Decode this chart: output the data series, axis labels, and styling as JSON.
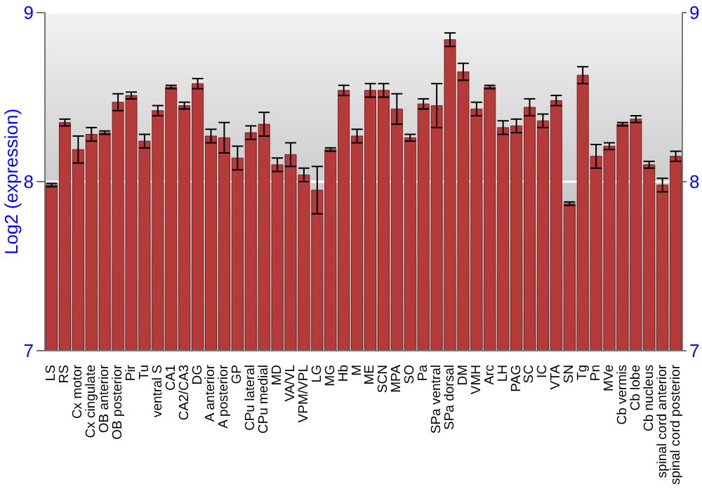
{
  "chart_data": {
    "type": "bar",
    "ylabel": "Log2 (expression)",
    "categories": [
      "LS",
      "RS",
      "Cx motor",
      "Cx cingulate",
      "OB anterior",
      "OB posterior",
      "Pir",
      "Tu",
      "ventral S",
      "CA1",
      "CA2/CA3",
      "DG",
      "A anterior",
      "A posterior",
      "GP",
      "CPu lateral",
      "CPu medial",
      "MD",
      "VA/VL",
      "VPM/VPL",
      "LG",
      "MG",
      "Hb",
      "M",
      "ME",
      "SCN",
      "MPA",
      "SO",
      "Pa",
      "SPa ventral",
      "SPa dorsal",
      "DM",
      "VMH",
      "Arc",
      "LH",
      "PAG",
      "SC",
      "IC",
      "VTA",
      "SN",
      "Tg",
      "Pn",
      "MVe",
      "Cb vermis",
      "Cb lobe",
      "Cb nucleus",
      "spinal cord anterior",
      "spinal cord posterior"
    ],
    "values": [
      7.98,
      8.35,
      8.19,
      8.28,
      8.29,
      8.47,
      8.51,
      8.24,
      8.42,
      8.56,
      8.45,
      8.58,
      8.27,
      8.26,
      8.14,
      8.29,
      8.34,
      8.1,
      8.16,
      8.04,
      7.95,
      8.19,
      8.54,
      8.27,
      8.54,
      8.54,
      8.43,
      8.26,
      8.46,
      8.45,
      8.84,
      8.65,
      8.43,
      8.56,
      8.32,
      8.33,
      8.44,
      8.36,
      8.48,
      7.87,
      8.63,
      8.15,
      8.21,
      8.34,
      8.37,
      8.1,
      7.98,
      8.15
    ],
    "errors": [
      0.01,
      0.02,
      0.08,
      0.04,
      0.01,
      0.05,
      0.02,
      0.04,
      0.03,
      0.01,
      0.02,
      0.03,
      0.04,
      0.09,
      0.07,
      0.04,
      0.07,
      0.04,
      0.07,
      0.04,
      0.14,
      0.01,
      0.03,
      0.04,
      0.04,
      0.04,
      0.09,
      0.02,
      0.03,
      0.13,
      0.04,
      0.05,
      0.04,
      0.01,
      0.04,
      0.04,
      0.05,
      0.04,
      0.03,
      0.01,
      0.05,
      0.07,
      0.02,
      0.01,
      0.02,
      0.02,
      0.04,
      0.03
    ],
    "color": "#b53a3a",
    "ylim": [
      7,
      9
    ],
    "yticks": [
      7,
      8,
      9
    ],
    "y2lim": [
      7,
      9
    ],
    "y2ticks": [
      7,
      8,
      9
    ],
    "grid": "y"
  }
}
